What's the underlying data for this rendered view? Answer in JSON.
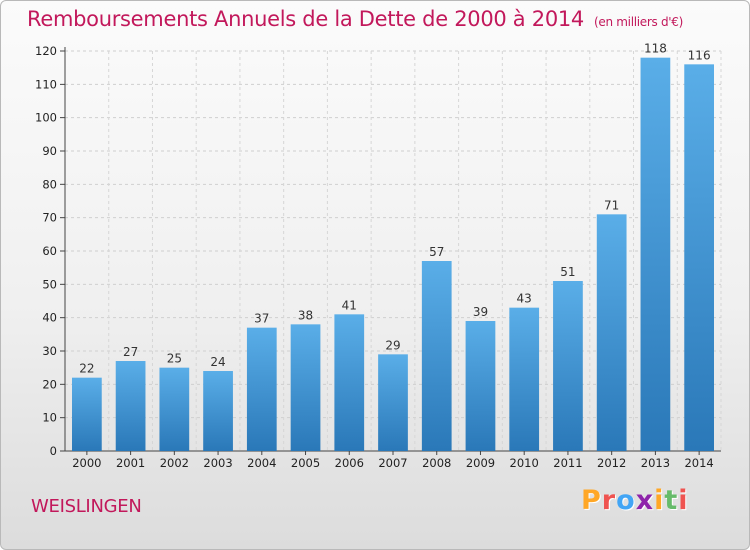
{
  "header": {
    "title": "Remboursements Annuels de la Dette de 2000 à 2014",
    "subtitle": "(en milliers d'€)"
  },
  "footer": {
    "commune": "WEISLINGEN",
    "logo_letters": [
      "P",
      "r",
      "o",
      "x",
      "i",
      "t",
      "i"
    ]
  },
  "colors": {
    "title": "#c2185b",
    "bar_top": "#5aaee8",
    "bar_bottom": "#2a78b8",
    "logo": [
      "#ffa726",
      "#ef5350",
      "#42a5f5",
      "#8e24aa",
      "#ffa726",
      "#66bb6a",
      "#ef5350"
    ]
  },
  "chart_data": {
    "type": "bar",
    "title": "Remboursements Annuels de la Dette de 2000 à 2014",
    "subtitle": "(en milliers d'€)",
    "xlabel": "",
    "ylabel": "",
    "ylim": [
      0,
      120
    ],
    "yticks": [
      0,
      10,
      20,
      30,
      40,
      50,
      60,
      70,
      80,
      90,
      100,
      110,
      120
    ],
    "grid": true,
    "categories": [
      "2000",
      "2001",
      "2002",
      "2003",
      "2004",
      "2005",
      "2006",
      "2007",
      "2008",
      "2009",
      "2010",
      "2011",
      "2012",
      "2013",
      "2014"
    ],
    "values": [
      22,
      27,
      25,
      24,
      37,
      38,
      41,
      29,
      57,
      39,
      43,
      51,
      71,
      118,
      116
    ]
  }
}
